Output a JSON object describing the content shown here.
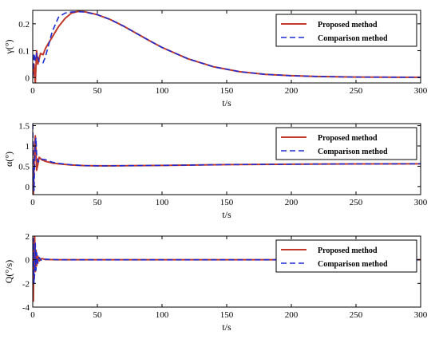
{
  "colors": {
    "proposed": "#c0392b",
    "comparison": "#1f2bd1",
    "axes": "#000000",
    "background": "#ffffff"
  },
  "chart_data": [
    {
      "type": "line",
      "ylabel": "γ(°)",
      "xlabel": "t/s",
      "xlim": [
        0,
        300
      ],
      "ylim": [
        -0.02,
        0.25
      ],
      "xticks": [
        "0",
        "50",
        "100",
        "150",
        "200",
        "250",
        "300"
      ],
      "yticks": [
        {
          "value": 0,
          "label": "0"
        },
        {
          "value": 0.1,
          "label": "0.1"
        },
        {
          "value": 0.2,
          "label": "0.2"
        }
      ],
      "grid": false,
      "legend_position": "top-right",
      "series": [
        {
          "name": "Proposed method",
          "style": "solid",
          "points": [
            [
              0,
              0
            ],
            [
              1,
              0.05
            ],
            [
              2,
              -0.02
            ],
            [
              3,
              0.1
            ],
            [
              4,
              0.05
            ],
            [
              6,
              0.09
            ],
            [
              8,
              0.085
            ],
            [
              10,
              0.11
            ],
            [
              15,
              0.15
            ],
            [
              20,
              0.19
            ],
            [
              25,
              0.22
            ],
            [
              30,
              0.24
            ],
            [
              35,
              0.246
            ],
            [
              40,
              0.245
            ],
            [
              50,
              0.234
            ],
            [
              60,
              0.216
            ],
            [
              70,
              0.192
            ],
            [
              80,
              0.165
            ],
            [
              90,
              0.138
            ],
            [
              100,
              0.112
            ],
            [
              120,
              0.07
            ],
            [
              140,
              0.04
            ],
            [
              160,
              0.022
            ],
            [
              180,
              0.012
            ],
            [
              200,
              0.007
            ],
            [
              220,
              0.004
            ],
            [
              250,
              0.002
            ],
            [
              300,
              0.001
            ]
          ]
        },
        {
          "name": "Comparison method",
          "style": "dashed",
          "points": [
            [
              0,
              0
            ],
            [
              1,
              0.09
            ],
            [
              2,
              0.06
            ],
            [
              3,
              0.09
            ],
            [
              5,
              0.06
            ],
            [
              8,
              0.055
            ],
            [
              10,
              0.08
            ],
            [
              15,
              0.17
            ],
            [
              20,
              0.225
            ],
            [
              25,
              0.24
            ],
            [
              30,
              0.244
            ],
            [
              35,
              0.245
            ],
            [
              40,
              0.244
            ],
            [
              50,
              0.234
            ],
            [
              60,
              0.216
            ],
            [
              70,
              0.192
            ],
            [
              80,
              0.165
            ],
            [
              90,
              0.138
            ],
            [
              100,
              0.112
            ],
            [
              120,
              0.07
            ],
            [
              140,
              0.04
            ],
            [
              160,
              0.022
            ],
            [
              180,
              0.012
            ],
            [
              200,
              0.007
            ],
            [
              220,
              0.004
            ],
            [
              250,
              0.002
            ],
            [
              300,
              0.001
            ]
          ]
        }
      ]
    },
    {
      "type": "line",
      "ylabel": "α(°)",
      "xlabel": "t/s",
      "xlim": [
        0,
        300
      ],
      "ylim": [
        -0.2,
        1.55
      ],
      "xticks": [
        "0",
        "50",
        "100",
        "150",
        "200",
        "250",
        "300"
      ],
      "yticks": [
        {
          "value": 0,
          "label": "0"
        },
        {
          "value": 0.5,
          "label": "0.5"
        },
        {
          "value": 1,
          "label": "1"
        },
        {
          "value": 1.5,
          "label": "1.5"
        }
      ],
      "grid": false,
      "legend_position": "top-right",
      "series": [
        {
          "name": "Proposed method",
          "style": "solid",
          "points": [
            [
              0,
              0
            ],
            [
              0.5,
              -0.2
            ],
            [
              1,
              0.4
            ],
            [
              1.5,
              1.0
            ],
            [
              2,
              1.25
            ],
            [
              2.5,
              0.9
            ],
            [
              3,
              0.4
            ],
            [
              4,
              0.55
            ],
            [
              5,
              0.72
            ],
            [
              7,
              0.66
            ],
            [
              10,
              0.62
            ],
            [
              15,
              0.58
            ],
            [
              20,
              0.56
            ],
            [
              30,
              0.53
            ],
            [
              40,
              0.515
            ],
            [
              50,
              0.51
            ],
            [
              60,
              0.51
            ],
            [
              80,
              0.515
            ],
            [
              100,
              0.52
            ],
            [
              150,
              0.54
            ],
            [
              200,
              0.55
            ],
            [
              250,
              0.558
            ],
            [
              300,
              0.56
            ]
          ]
        },
        {
          "name": "Comparison method",
          "style": "dashed",
          "points": [
            [
              0,
              1.55
            ],
            [
              0.5,
              0.5
            ],
            [
              1,
              -0.1
            ],
            [
              1.5,
              0.6
            ],
            [
              2,
              1.1
            ],
            [
              2.5,
              1.2
            ],
            [
              3,
              0.8
            ],
            [
              4,
              0.6
            ],
            [
              6,
              0.68
            ],
            [
              10,
              0.66
            ],
            [
              15,
              0.6
            ],
            [
              20,
              0.57
            ],
            [
              30,
              0.535
            ],
            [
              40,
              0.515
            ],
            [
              50,
              0.51
            ],
            [
              60,
              0.51
            ],
            [
              80,
              0.515
            ],
            [
              100,
              0.52
            ],
            [
              150,
              0.54
            ],
            [
              200,
              0.55
            ],
            [
              250,
              0.558
            ],
            [
              300,
              0.56
            ]
          ]
        }
      ]
    },
    {
      "type": "line",
      "ylabel": "Q(°/s)",
      "xlabel": "t/s",
      "xlim": [
        0,
        300
      ],
      "ylim": [
        -4,
        2
      ],
      "xticks": [
        "0",
        "50",
        "100",
        "150",
        "200",
        "250",
        "300"
      ],
      "yticks": [
        {
          "value": -4,
          "label": "-4"
        },
        {
          "value": -2,
          "label": "-2"
        },
        {
          "value": 0,
          "label": "0"
        },
        {
          "value": 2,
          "label": "2"
        }
      ],
      "grid": false,
      "legend_position": "top-right",
      "series": [
        {
          "name": "Proposed method",
          "style": "solid",
          "points": [
            [
              0,
              0
            ],
            [
              0.5,
              -3.5
            ],
            [
              1,
              1.5
            ],
            [
              1.5,
              2
            ],
            [
              2,
              -1
            ],
            [
              2.5,
              0.8
            ],
            [
              3,
              -0.5
            ],
            [
              4,
              0.3
            ],
            [
              5,
              -0.1
            ],
            [
              7,
              0.1
            ],
            [
              10,
              0.02
            ],
            [
              20,
              0
            ],
            [
              300,
              0
            ]
          ]
        },
        {
          "name": "Comparison method",
          "style": "dashed",
          "points": [
            [
              0,
              0
            ],
            [
              0.5,
              1.8
            ],
            [
              1,
              -2
            ],
            [
              1.5,
              -1.2
            ],
            [
              2,
              1.4
            ],
            [
              2.5,
              -0.9
            ],
            [
              3,
              0.6
            ],
            [
              4,
              -0.3
            ],
            [
              5,
              0.2
            ],
            [
              7,
              -0.1
            ],
            [
              10,
              0.05
            ],
            [
              20,
              0
            ],
            [
              300,
              0
            ]
          ]
        }
      ]
    }
  ]
}
